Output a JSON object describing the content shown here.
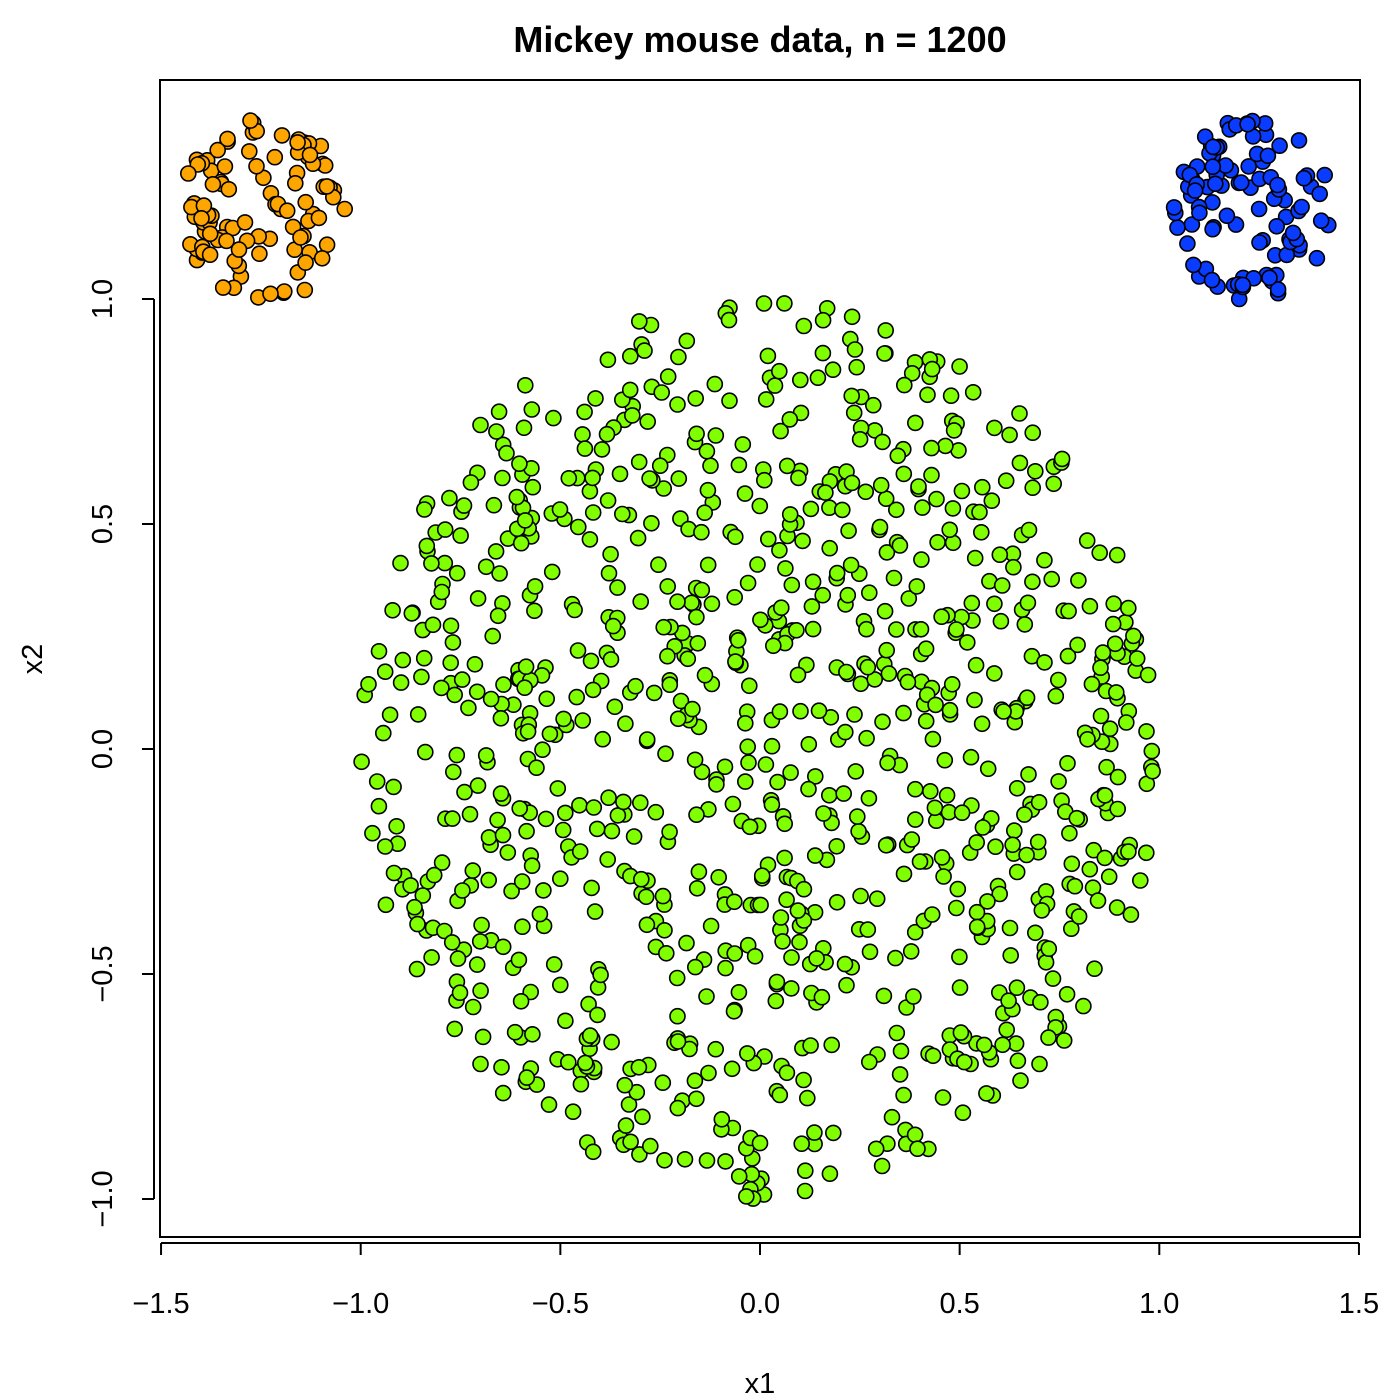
{
  "chart_data": {
    "type": "scatter",
    "title": "Mickey mouse data, n = 1200",
    "xlabel": "x1",
    "ylabel": "x2",
    "xlim": [
      -1.5,
      1.5
    ],
    "ylim": [
      -1.08,
      1.42
    ],
    "x_ticks": [
      -1.5,
      -1.0,
      -0.5,
      0.0,
      0.5,
      1.0,
      1.5
    ],
    "x_tick_labels": [
      "−1.5",
      "−1.0",
      "−0.5",
      "0.0",
      "0.5",
      "1.0",
      "1.5"
    ],
    "y_ticks": [
      -1.0,
      -0.5,
      0.0,
      0.5,
      1.0
    ],
    "y_tick_labels": [
      "−1.0",
      "−0.5",
      "0.0",
      "0.5",
      "1.0"
    ],
    "grid": false,
    "legend": "none",
    "series": [
      {
        "color": "#FFA500",
        "shape": "disc",
        "center": [
          -1.25,
          1.2
        ],
        "radius": 0.2,
        "n": 100,
        "sample_points": [
          [
            -1.27,
            1.37
          ],
          [
            -1.35,
            1.26
          ],
          [
            -1.39,
            1.15
          ],
          [
            -1.3,
            1.05
          ],
          [
            -1.14,
            1.02
          ],
          [
            -1.1,
            1.34
          ],
          [
            -1.04,
            1.2
          ],
          [
            -1.2,
            1.2
          ]
        ]
      },
      {
        "color": "#0A3CFF",
        "shape": "disc",
        "center": [
          1.23,
          1.2
        ],
        "radius": 0.2,
        "n": 100,
        "sample_points": [
          [
            1.22,
            1.39
          ],
          [
            1.08,
            1.23
          ],
          [
            1.1,
            1.05
          ],
          [
            1.2,
            1.0
          ],
          [
            1.35,
            1.11
          ],
          [
            1.38,
            1.25
          ],
          [
            1.13,
            1.34
          ],
          [
            1.25,
            1.2
          ]
        ]
      },
      {
        "color": "#7FFF00",
        "shape": "disc",
        "center": [
          0.0,
          0.0
        ],
        "radius": 1.0,
        "n": 1000,
        "sample_points": [
          [
            0.01,
            0.99
          ],
          [
            -0.99,
            0.12
          ],
          [
            0.01,
            -0.99
          ],
          [
            0.98,
            -0.04
          ],
          [
            0.5,
            0.85
          ],
          [
            -0.7,
            0.72
          ],
          [
            0.7,
            -0.7
          ],
          [
            -0.7,
            -0.7
          ]
        ]
      }
    ]
  }
}
